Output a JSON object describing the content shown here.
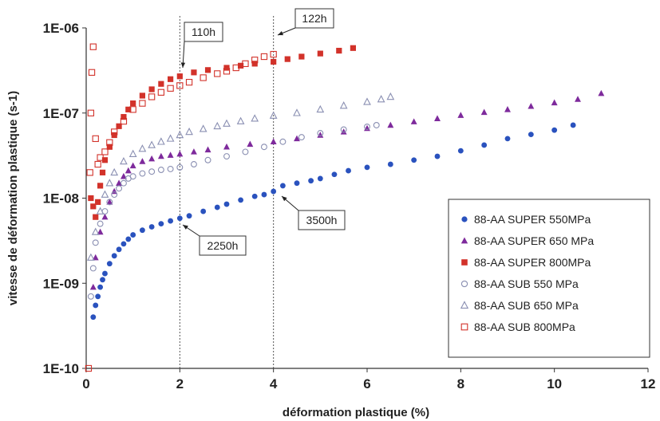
{
  "chart_data": {
    "type": "scatter",
    "xlabel": "déformation plastique (%)",
    "ylabel": "vitesse de déformation plastique (s-1)",
    "xlim": [
      0,
      12
    ],
    "ylim": [
      1e-10,
      1e-06
    ],
    "yscale": "log",
    "x_ticks": [
      0,
      2,
      4,
      6,
      8,
      10,
      12
    ],
    "x_tick_labels": [
      "0",
      "2",
      "4",
      "6",
      "8",
      "10",
      "12"
    ],
    "y_ticks": [
      1e-10,
      1e-09,
      1e-08,
      1e-07,
      1e-06
    ],
    "y_tick_labels": [
      "1E-10",
      "1E-09",
      "1E-08",
      "1E-07",
      "1E-06"
    ],
    "grid": false,
    "legend_position": "bottom-right",
    "colors": {
      "blue": "#2a52be",
      "purple": "#7e2a9c",
      "red": "#d2322a",
      "hollow_stroke": "#8a8fb2",
      "hollow_red": "#d2322a"
    },
    "vlines": [
      2,
      4
    ],
    "series": [
      {
        "name": "88-AA SUPER 550MPa",
        "marker": "circle-filled",
        "color": "#2a52be",
        "x": [
          0.15,
          0.2,
          0.25,
          0.3,
          0.35,
          0.4,
          0.5,
          0.6,
          0.7,
          0.8,
          0.9,
          1.0,
          1.2,
          1.4,
          1.6,
          1.8,
          2.0,
          2.2,
          2.5,
          2.8,
          3.0,
          3.3,
          3.6,
          3.8,
          4.0,
          4.2,
          4.5,
          4.8,
          5.0,
          5.3,
          5.6,
          6.0,
          6.5,
          7.0,
          7.5,
          8.0,
          8.5,
          9.0,
          9.5,
          10.0,
          10.4
        ],
        "y": [
          4e-10,
          5.5e-10,
          7e-10,
          9e-10,
          1.1e-09,
          1.3e-09,
          1.7e-09,
          2.1e-09,
          2.5e-09,
          2.9e-09,
          3.3e-09,
          3.7e-09,
          4.2e-09,
          4.6e-09,
          5e-09,
          5.4e-09,
          5.8e-09,
          6.2e-09,
          7e-09,
          7.8e-09,
          8.5e-09,
          9.5e-09,
          1.05e-08,
          1.1e-08,
          1.2e-08,
          1.4e-08,
          1.5e-08,
          1.6e-08,
          1.7e-08,
          1.9e-08,
          2.1e-08,
          2.3e-08,
          2.5e-08,
          2.8e-08,
          3.1e-08,
          3.6e-08,
          4.2e-08,
          5e-08,
          5.6e-08,
          6.3e-08,
          7.2e-08
        ]
      },
      {
        "name": "88-AA SUPER 650 MPa",
        "marker": "triangle-filled",
        "color": "#7e2a9c",
        "x": [
          0.15,
          0.2,
          0.3,
          0.4,
          0.5,
          0.6,
          0.7,
          0.8,
          0.9,
          1.0,
          1.2,
          1.4,
          1.6,
          1.8,
          2.0,
          2.3,
          2.6,
          3.0,
          3.5,
          4.0,
          4.5,
          5.0,
          5.5,
          6.0,
          6.5,
          7.0,
          7.5,
          8.0,
          8.5,
          9.0,
          9.5,
          10.0,
          10.5,
          11.0
        ],
        "y": [
          9e-10,
          2e-09,
          4e-09,
          6e-09,
          9e-09,
          1.2e-08,
          1.5e-08,
          1.8e-08,
          2.1e-08,
          2.4e-08,
          2.7e-08,
          2.9e-08,
          3.1e-08,
          3.2e-08,
          3.3e-08,
          3.5e-08,
          3.7e-08,
          4e-08,
          4.3e-08,
          4.6e-08,
          5e-08,
          5.5e-08,
          6e-08,
          6.6e-08,
          7.2e-08,
          7.9e-08,
          8.6e-08,
          9.4e-08,
          1.02e-07,
          1.1e-07,
          1.2e-07,
          1.32e-07,
          1.45e-07,
          1.7e-07
        ]
      },
      {
        "name": "88-AA SUPER 800MPa",
        "marker": "square-filled",
        "color": "#d2322a",
        "x": [
          0.1,
          0.15,
          0.2,
          0.25,
          0.3,
          0.35,
          0.4,
          0.5,
          0.6,
          0.7,
          0.8,
          0.9,
          1.0,
          1.2,
          1.4,
          1.6,
          1.8,
          2.0,
          2.3,
          2.6,
          3.0,
          3.3,
          3.6,
          4.0,
          4.3,
          4.6,
          5.0,
          5.4,
          5.7
        ],
        "y": [
          1e-08,
          8e-09,
          6e-09,
          9e-09,
          1.4e-08,
          2e-08,
          2.8e-08,
          4e-08,
          5.5e-08,
          7e-08,
          9e-08,
          1.1e-07,
          1.3e-07,
          1.6e-07,
          1.9e-07,
          2.2e-07,
          2.5e-07,
          2.7e-07,
          3e-07,
          3.2e-07,
          3.4e-07,
          3.6e-07,
          3.8e-07,
          4e-07,
          4.3e-07,
          4.6e-07,
          5e-07,
          5.4e-07,
          5.8e-07
        ]
      },
      {
        "name": "88-AA SUB 550 MPa",
        "marker": "circle-hollow",
        "color": "#8a8fb2",
        "x": [
          0.1,
          0.15,
          0.2,
          0.3,
          0.4,
          0.5,
          0.6,
          0.7,
          0.8,
          0.9,
          1.0,
          1.2,
          1.4,
          1.6,
          1.8,
          2.0,
          2.3,
          2.6,
          3.0,
          3.4,
          3.8,
          4.2,
          4.6,
          5.0,
          5.5,
          6.0,
          6.2
        ],
        "y": [
          7e-10,
          1.5e-09,
          3e-09,
          5e-09,
          7e-09,
          9e-09,
          1.1e-08,
          1.3e-08,
          1.5e-08,
          1.7e-08,
          1.8e-08,
          1.95e-08,
          2.05e-08,
          2.15e-08,
          2.2e-08,
          2.3e-08,
          2.5e-08,
          2.8e-08,
          3.1e-08,
          3.5e-08,
          4e-08,
          4.6e-08,
          5.2e-08,
          5.8e-08,
          6.4e-08,
          6.9e-08,
          7.2e-08
        ]
      },
      {
        "name": "88-AA SUB 650 MPa",
        "marker": "triangle-hollow",
        "color": "#8a8fb2",
        "x": [
          0.1,
          0.2,
          0.3,
          0.4,
          0.5,
          0.6,
          0.8,
          1.0,
          1.2,
          1.4,
          1.6,
          1.8,
          2.0,
          2.2,
          2.5,
          2.8,
          3.0,
          3.3,
          3.6,
          4.0,
          4.5,
          5.0,
          5.5,
          6.0,
          6.3,
          6.5
        ],
        "y": [
          2e-09,
          4e-09,
          7e-09,
          1.1e-08,
          1.5e-08,
          2e-08,
          2.7e-08,
          3.3e-08,
          3.8e-08,
          4.2e-08,
          4.6e-08,
          5e-08,
          5.5e-08,
          6e-08,
          6.5e-08,
          7e-08,
          7.5e-08,
          8e-08,
          8.6e-08,
          9.3e-08,
          1e-07,
          1.1e-07,
          1.22e-07,
          1.35e-07,
          1.45e-07,
          1.55e-07
        ]
      },
      {
        "name": "88-AA SUB 800MPa",
        "marker": "square-hollow",
        "color": "#d2322a",
        "x": [
          0.05,
          0.08,
          0.1,
          0.12,
          0.15,
          0.2,
          0.25,
          0.3,
          0.4,
          0.5,
          0.6,
          0.8,
          1.0,
          1.2,
          1.4,
          1.6,
          1.8,
          2.0,
          2.2,
          2.5,
          2.8,
          3.0,
          3.2,
          3.4,
          3.6,
          3.8,
          4.0
        ],
        "y": [
          1e-10,
          2e-08,
          1e-07,
          3e-07,
          6e-07,
          5e-08,
          2.5e-08,
          3e-08,
          3.5e-08,
          4.5e-08,
          6e-08,
          8e-08,
          1.1e-07,
          1.3e-07,
          1.55e-07,
          1.75e-07,
          1.95e-07,
          2.1e-07,
          2.3e-07,
          2.6e-07,
          2.9e-07,
          3.1e-07,
          3.4e-07,
          3.8e-07,
          4.2e-07,
          4.6e-07,
          4.9e-07
        ]
      }
    ],
    "annotations": [
      {
        "text": "110h",
        "x": 2.0,
        "y": 2.3e-07
      },
      {
        "text": "122h",
        "x": 4.0,
        "y": 5e-07
      },
      {
        "text": "2250h",
        "x": 2.0,
        "y": 5.5e-09
      },
      {
        "text": "3500h",
        "x": 4.2,
        "y": 1.2e-08
      }
    ]
  }
}
